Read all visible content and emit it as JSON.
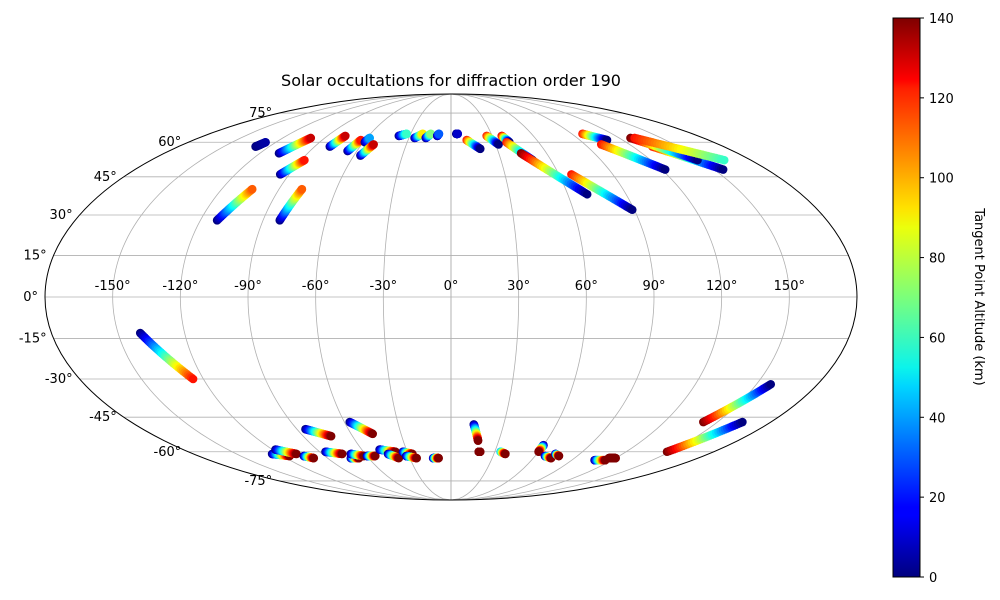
{
  "chart_data": {
    "type": "scatter",
    "projection": "mollweide",
    "title": "Solar occultations for diffraction order 190",
    "grid": true,
    "lon_tick_labels": [
      "-150°",
      "-120°",
      "-90°",
      "-60°",
      "-30°",
      "0°",
      "30°",
      "60°",
      "90°",
      "120°",
      "150°"
    ],
    "lon_ticks": [
      -150,
      -120,
      -90,
      -60,
      -30,
      0,
      30,
      60,
      90,
      120,
      150
    ],
    "lat_tick_labels": [
      "-75°",
      "-60°",
      "-45°",
      "-30°",
      "-15°",
      "0°",
      "15°",
      "30°",
      "45°",
      "60°",
      "75°"
    ],
    "lat_ticks": [
      -75,
      -60,
      -45,
      -30,
      -15,
      0,
      15,
      30,
      45,
      60,
      75
    ],
    "colorbar": {
      "label": "Tangent Point Altitude (km)",
      "range": [
        0,
        140
      ],
      "tick_labels": [
        "0",
        "20",
        "40",
        "60",
        "80",
        "100",
        "120",
        "140"
      ],
      "ticks": [
        0,
        20,
        40,
        60,
        80,
        100,
        120,
        140
      ],
      "colormap": "jet"
    },
    "tracks": [
      {
        "start": [
          -129,
          58
        ],
        "end": [
          -127,
          60
        ],
        "alt": [
          0,
          5
        ]
      },
      {
        "start": [
          -108,
          55
        ],
        "end": [
          -100,
          62
        ],
        "alt": [
          0,
          130
        ]
      },
      {
        "start": [
          -112,
          28
        ],
        "end": [
          -104,
          40
        ],
        "alt": [
          0,
          110
        ]
      },
      {
        "start": [
          -95,
          46
        ],
        "end": [
          -88,
          52
        ],
        "alt": [
          0,
          120
        ]
      },
      {
        "start": [
          -82,
          28
        ],
        "end": [
          -78,
          40
        ],
        "alt": [
          0,
          110
        ]
      },
      {
        "start": [
          -80,
          58
        ],
        "end": [
          -77,
          63
        ],
        "alt": [
          0,
          130
        ]
      },
      {
        "start": [
          -66,
          56
        ],
        "end": [
          -63,
          61
        ],
        "alt": [
          0,
          120
        ]
      },
      {
        "start": [
          -59,
          60
        ],
        "end": [
          -58,
          62
        ],
        "alt": [
          0,
          40
        ]
      },
      {
        "start": [
          -56,
          54
        ],
        "end": [
          -52,
          59
        ],
        "alt": [
          0,
          130
        ]
      },
      {
        "start": [
          -38,
          63
        ],
        "end": [
          -33,
          64
        ],
        "alt": [
          0,
          60
        ]
      },
      {
        "start": [
          -26,
          62
        ],
        "end": [
          -21,
          64
        ],
        "alt": [
          0,
          90
        ]
      },
      {
        "start": [
          -18,
          62
        ],
        "end": [
          -15,
          64
        ],
        "alt": [
          0,
          70
        ]
      },
      {
        "start": [
          -10,
          63
        ],
        "end": [
          -9,
          64
        ],
        "alt": [
          0,
          30
        ]
      },
      {
        "start": [
          4,
          64
        ],
        "end": [
          5,
          64
        ],
        "alt": [
          0,
          10
        ]
      },
      {
        "start": [
          11,
          61
        ],
        "end": [
          19,
          57
        ],
        "alt": [
          120,
          0
        ]
      },
      {
        "start": [
          26,
          63
        ],
        "end": [
          32,
          59
        ],
        "alt": [
          120,
          0
        ]
      },
      {
        "start": [
          37,
          63
        ],
        "end": [
          40,
          60
        ],
        "alt": [
          130,
          0
        ]
      },
      {
        "start": [
          38,
          60
        ],
        "end": [
          49,
          52
        ],
        "alt": [
          120,
          0
        ]
      },
      {
        "start": [
          44,
          55
        ],
        "end": [
          70,
          38
        ],
        "alt": [
          140,
          0
        ]
      },
      {
        "start": [
          67,
          46
        ],
        "end": [
          89,
          32
        ],
        "alt": [
          120,
          0
        ]
      },
      {
        "start": [
          98,
          64
        ],
        "end": [
          109,
          61
        ],
        "alt": [
          120,
          0
        ]
      },
      {
        "start": [
          101,
          59
        ],
        "end": [
          122,
          48
        ],
        "alt": [
          120,
          0
        ]
      },
      {
        "start": [
          133,
          58
        ],
        "end": [
          155,
          48
        ],
        "alt": [
          120,
          0
        ]
      },
      {
        "start": [
          128,
          62
        ],
        "end": [
          148,
          52
        ],
        "alt": [
          140,
          0
        ]
      },
      {
        "start": [
          131,
          62
        ],
        "end": [
          164,
          52
        ],
        "alt": [
          120,
          60
        ]
      },
      {
        "start": [
          -140,
          -13
        ],
        "end": [
          -125,
          -30
        ],
        "alt": [
          0,
          120
        ]
      },
      {
        "start": [
          142,
          -47
        ],
        "end": [
          157,
          -32
        ],
        "alt": [
          140,
          0
        ]
      },
      {
        "start": [
          148,
          -60
        ],
        "end": [
          164,
          -47
        ],
        "alt": [
          140,
          0
        ]
      },
      {
        "start": [
          -85,
          -50
        ],
        "end": [
          -73,
          -53
        ],
        "alt": [
          0,
          140
        ]
      },
      {
        "start": [
          -57,
          -47
        ],
        "end": [
          -47,
          -52
        ],
        "alt": [
          0,
          140
        ]
      },
      {
        "start": [
          -125,
          -61
        ],
        "end": [
          -115,
          -62
        ],
        "alt": [
          0,
          140
        ]
      },
      {
        "start": [
          -118,
          -59
        ],
        "end": [
          -108,
          -61
        ],
        "alt": [
          0,
          140
        ]
      },
      {
        "start": [
          -105,
          -62
        ],
        "end": [
          -100,
          -63
        ],
        "alt": [
          0,
          140
        ]
      },
      {
        "start": [
          -86,
          -60
        ],
        "end": [
          -76,
          -61
        ],
        "alt": [
          0,
          140
        ]
      },
      {
        "start": [
          -73,
          -63
        ],
        "end": [
          -67,
          -63
        ],
        "alt": [
          0,
          140
        ]
      },
      {
        "start": [
          -70,
          -61
        ],
        "end": [
          -62,
          -62
        ],
        "alt": [
          0,
          140
        ]
      },
      {
        "start": [
          -60,
          -62
        ],
        "end": [
          -54,
          -62
        ],
        "alt": [
          0,
          140
        ]
      },
      {
        "start": [
          -48,
          -59
        ],
        "end": [
          -38,
          -60
        ],
        "alt": [
          0,
          140
        ]
      },
      {
        "start": [
          -44,
          -61
        ],
        "end": [
          -38,
          -63
        ],
        "alt": [
          0,
          140
        ]
      },
      {
        "start": [
          -33,
          -60
        ],
        "end": [
          -27,
          -61
        ],
        "alt": [
          0,
          140
        ]
      },
      {
        "start": [
          -32,
          -62
        ],
        "end": [
          -25,
          -63
        ],
        "alt": [
          0,
          140
        ]
      },
      {
        "start": [
          -13,
          -63
        ],
        "end": [
          -9,
          -63
        ],
        "alt": [
          0,
          140
        ]
      },
      {
        "start": [
          13,
          -48
        ],
        "end": [
          17,
          -55
        ],
        "alt": [
          0,
          140
        ]
      },
      {
        "start": [
          19,
          -60
        ],
        "end": [
          20,
          -60
        ],
        "alt": [
          140,
          140
        ]
      },
      {
        "start": [
          34,
          -60
        ],
        "end": [
          38,
          -61
        ],
        "alt": [
          40,
          140
        ]
      },
      {
        "start": [
          60,
          -57
        ],
        "end": [
          60,
          -60
        ],
        "alt": [
          0,
          140
        ]
      },
      {
        "start": [
          67,
          -62
        ],
        "end": [
          73,
          -63
        ],
        "alt": [
          0,
          140
        ]
      },
      {
        "start": [
          73,
          -61
        ],
        "end": [
          77,
          -62
        ],
        "alt": [
          0,
          140
        ]
      },
      {
        "start": [
          107,
          -64
        ],
        "end": [
          115,
          -64
        ],
        "alt": [
          0,
          140
        ]
      },
      {
        "start": [
          115,
          -63
        ],
        "end": [
          120,
          -63
        ],
        "alt": [
          140,
          140
        ]
      }
    ]
  }
}
